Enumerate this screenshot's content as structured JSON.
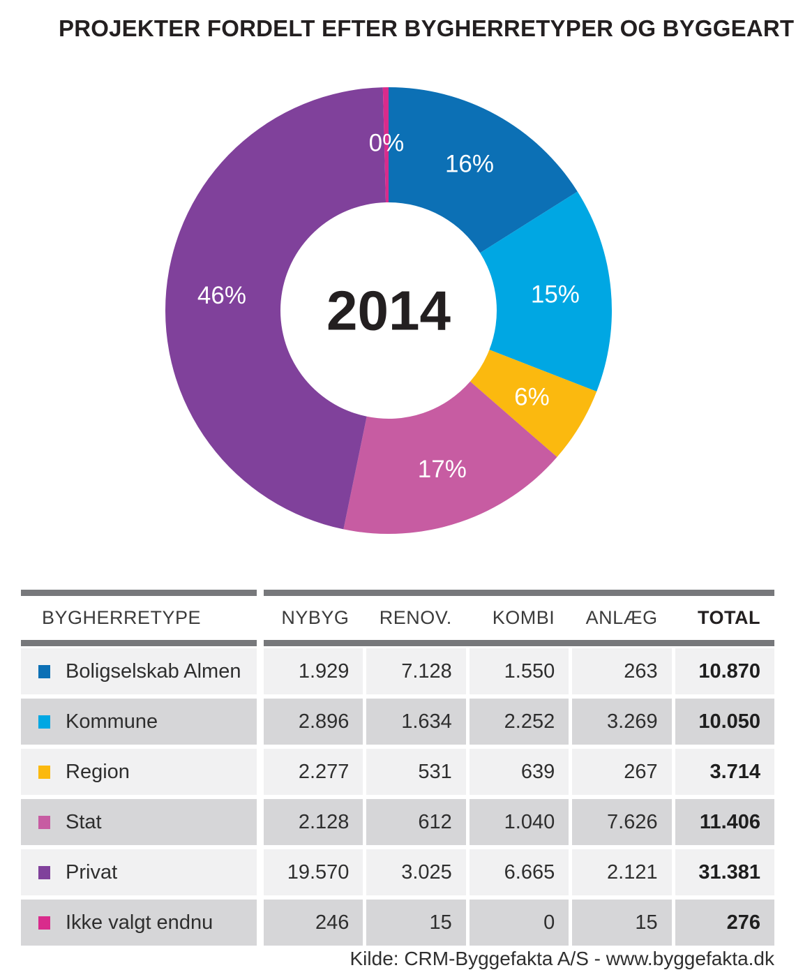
{
  "title": "PROJEKTER FORDELT EFTER BYGHERRETYPER OG BYGGEART",
  "chart_data": {
    "type": "pie",
    "subtype": "donut",
    "start_angle_deg_from_top": 0,
    "direction": "clockwise",
    "center_label": "2014",
    "label_text_color": "#FFFFFF",
    "segments": [
      {
        "name": "Boligselskab Almen",
        "value": 10870,
        "percent_label": "16%",
        "color": "#0C70B5"
      },
      {
        "name": "Kommune",
        "value": 10050,
        "percent_label": "15%",
        "color": "#00A7E3"
      },
      {
        "name": "Region",
        "value": 3714,
        "percent_label": "6%",
        "color": "#FBB90F"
      },
      {
        "name": "Stat",
        "value": 11406,
        "percent_label": "17%",
        "color": "#C75CA2"
      },
      {
        "name": "Privat",
        "value": 31381,
        "percent_label": "46%",
        "color": "#80419B"
      },
      {
        "name": "Ikke valgt endnu",
        "value": 276,
        "percent_label": "0%",
        "color": "#D92B8C"
      }
    ]
  },
  "table": {
    "header": {
      "label_col": "BYGHERRETYPE",
      "columns": [
        "NYBYG",
        "RENOV.",
        "KOMBI",
        "ANLÆG",
        "TOTAL"
      ]
    },
    "rows": [
      {
        "label": "Boligselskab Almen",
        "color": "#0C70B5",
        "values": [
          "1.929",
          "7.128",
          "1.550",
          "263"
        ],
        "total": "10.870"
      },
      {
        "label": "Kommune",
        "color": "#00A7E3",
        "values": [
          "2.896",
          "1.634",
          "2.252",
          "3.269"
        ],
        "total": "10.050"
      },
      {
        "label": "Region",
        "color": "#FBB90F",
        "values": [
          "2.277",
          "531",
          "639",
          "267"
        ],
        "total": "3.714"
      },
      {
        "label": "Stat",
        "color": "#C75CA2",
        "values": [
          "2.128",
          "612",
          "1.040",
          "7.626"
        ],
        "total": "11.406"
      },
      {
        "label": "Privat",
        "color": "#80419B",
        "values": [
          "19.570",
          "3.025",
          "6.665",
          "2.121"
        ],
        "total": "31.381"
      },
      {
        "label": "Ikke valgt endnu",
        "color": "#D92B8C",
        "values": [
          "246",
          "15",
          "0",
          "15"
        ],
        "total": "276"
      }
    ]
  },
  "footer": {
    "source": "Kilde: CRM-Byggefakta A/S - www.byggefakta.dk"
  }
}
